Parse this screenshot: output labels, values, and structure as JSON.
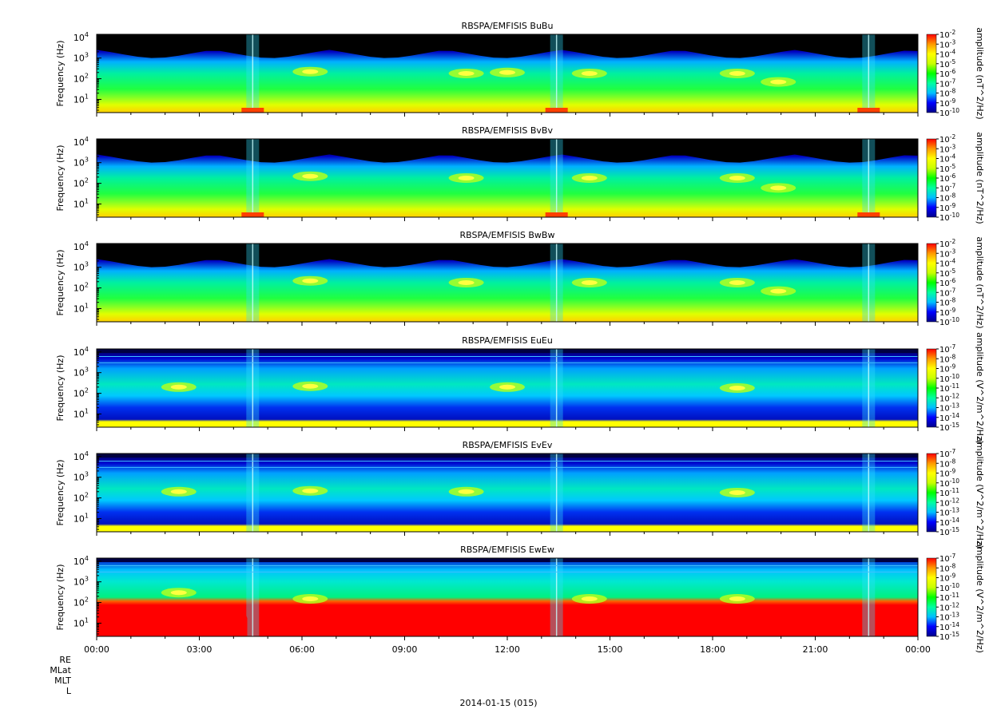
{
  "chart_data": [
    {
      "type": "heatmap",
      "title": "RBSPA/EMFISIS  BuBu",
      "ylabel": "Frequency (Hz)",
      "yscale": "log",
      "y_ticks": [
        "10^1",
        "10^2",
        "10^3",
        "10^4"
      ],
      "colorbar_label": "amplitude (nT^2/Hz)",
      "colorbar_ticks": [
        "10^-2",
        "10^-3",
        "10^-4",
        "10^-5",
        "10^-6",
        "10^-7",
        "10^-8",
        "10^-9",
        "10^-10"
      ],
      "features": {
        "chorus": [
          [
            0.26,
            220
          ],
          [
            0.45,
            180
          ],
          [
            0.5,
            200
          ],
          [
            0.6,
            180
          ],
          [
            0.78,
            180
          ],
          [
            0.83,
            70
          ]
        ],
        "low_red": [
          [
            0.19,
            3
          ],
          [
            0.56,
            3
          ],
          [
            0.94,
            3
          ]
        ],
        "perigee": [
          0.19,
          0.56,
          0.94
        ]
      }
    },
    {
      "type": "heatmap",
      "title": "RBSPA/EMFISIS  BvBv",
      "ylabel": "Frequency (Hz)",
      "yscale": "log",
      "y_ticks": [
        "10^1",
        "10^2",
        "10^3",
        "10^4"
      ],
      "colorbar_label": "amplitude (nT^2/Hz)",
      "colorbar_ticks": [
        "10^-2",
        "10^-3",
        "10^-4",
        "10^-5",
        "10^-6",
        "10^-7",
        "10^-8",
        "10^-9",
        "10^-10"
      ],
      "features": {
        "chorus": [
          [
            0.26,
            220
          ],
          [
            0.45,
            180
          ],
          [
            0.6,
            180
          ],
          [
            0.78,
            180
          ],
          [
            0.83,
            60
          ]
        ],
        "low_red": [
          [
            0.19,
            3
          ],
          [
            0.56,
            3
          ],
          [
            0.94,
            3
          ]
        ],
        "perigee": [
          0.19,
          0.56,
          0.94
        ]
      }
    },
    {
      "type": "heatmap",
      "title": "RBSPA/EMFISIS  BwBw",
      "ylabel": "Frequency (Hz)",
      "yscale": "log",
      "y_ticks": [
        "10^1",
        "10^2",
        "10^3",
        "10^4"
      ],
      "colorbar_label": "amplitude (nT^2/Hz)",
      "colorbar_ticks": [
        "10^-2",
        "10^-3",
        "10^-4",
        "10^-5",
        "10^-6",
        "10^-7",
        "10^-8",
        "10^-9",
        "10^-10"
      ],
      "features": {
        "chorus": [
          [
            0.26,
            220
          ],
          [
            0.45,
            180
          ],
          [
            0.6,
            180
          ],
          [
            0.78,
            180
          ],
          [
            0.83,
            70
          ]
        ],
        "low_red": [],
        "perigee": [
          0.19,
          0.56,
          0.94
        ]
      }
    },
    {
      "type": "heatmap",
      "title": "RBSPA/EMFISIS  EuEu",
      "ylabel": "Frequency (Hz)",
      "yscale": "log",
      "y_ticks": [
        "10^1",
        "10^2",
        "10^3",
        "10^4"
      ],
      "colorbar_label": "amplitude (V^2/m^2/Hz)",
      "colorbar_ticks": [
        "10^-7",
        "10^-8",
        "10^-9",
        "10^-10",
        "10^-11",
        "10^-12",
        "10^-13",
        "10^-14",
        "10^-15"
      ],
      "features": {
        "chorus": [
          [
            0.1,
            200
          ],
          [
            0.26,
            220
          ],
          [
            0.5,
            200
          ],
          [
            0.78,
            180
          ]
        ],
        "low_red": [],
        "perigee": [
          0.19,
          0.56,
          0.94
        ]
      }
    },
    {
      "type": "heatmap",
      "title": "RBSPA/EMFISIS  EvEv",
      "ylabel": "Frequency (Hz)",
      "yscale": "log",
      "y_ticks": [
        "10^1",
        "10^2",
        "10^3",
        "10^4"
      ],
      "colorbar_label": "amplitude (V^2/m^2/Hz)",
      "colorbar_ticks": [
        "10^-7",
        "10^-8",
        "10^-9",
        "10^-10",
        "10^-11",
        "10^-12",
        "10^-13",
        "10^-14",
        "10^-15"
      ],
      "features": {
        "chorus": [
          [
            0.1,
            200
          ],
          [
            0.26,
            220
          ],
          [
            0.45,
            200
          ],
          [
            0.78,
            180
          ]
        ],
        "low_red": [],
        "perigee": [
          0.19,
          0.56,
          0.94
        ]
      }
    },
    {
      "type": "heatmap",
      "title": "RBSPA/EMFISIS  EwEw",
      "ylabel": "Frequency (Hz)",
      "yscale": "log",
      "y_ticks": [
        "10^1",
        "10^2",
        "10^3",
        "10^4"
      ],
      "colorbar_label": "amplitude (V^2/m^2/Hz)",
      "colorbar_ticks": [
        "10^-7",
        "10^-8",
        "10^-9",
        "10^-10",
        "10^-11",
        "10^-12",
        "10^-13",
        "10^-14",
        "10^-15"
      ],
      "features": {
        "chorus": [
          [
            0.1,
            300
          ],
          [
            0.26,
            150
          ],
          [
            0.6,
            150
          ],
          [
            0.78,
            150
          ]
        ],
        "low_red": [
          [
            0.0,
            30
          ]
        ],
        "perigee": [
          0.19,
          0.56,
          0.94
        ]
      }
    }
  ],
  "x_axis": {
    "ticks": [
      "00:00",
      "03:00",
      "06:00",
      "09:00",
      "12:00",
      "15:00",
      "18:00",
      "21:00",
      "00:00"
    ],
    "date_label": "2014-01-15 (015)"
  },
  "ephemeris_labels": [
    "RE",
    "MLat",
    "MLT",
    "L"
  ],
  "colors": {
    "colormap": [
      "#00008b",
      "#0000ff",
      "#00bfff",
      "#00ffa0",
      "#00ff00",
      "#c8ff00",
      "#ffff00",
      "#ff9900",
      "#ff0000"
    ],
    "background_no_data": "#000000"
  }
}
